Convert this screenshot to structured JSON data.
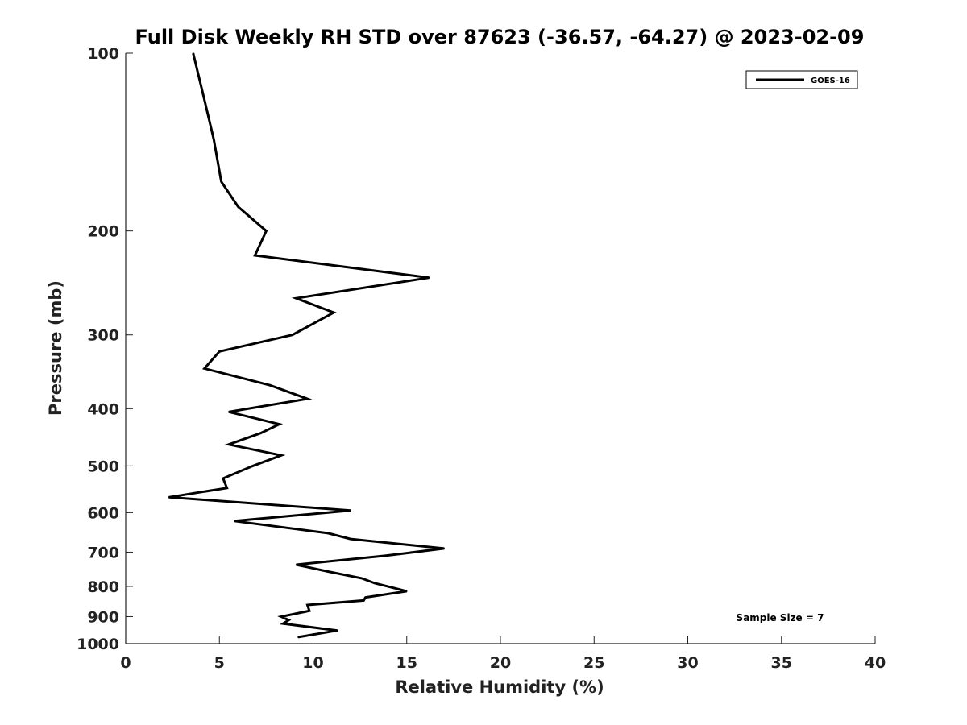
{
  "chart_data": {
    "type": "line",
    "title": "Full Disk Weekly RH STD over 87623 (-36.57, -64.27) @ 2023-02-09",
    "xlabel": "Relative Humidity (%)",
    "ylabel": "Pressure (mb)",
    "xlim": [
      0,
      40
    ],
    "ylim": [
      1000,
      100
    ],
    "yscale": "log",
    "y_inverted": true,
    "grid": false,
    "legend_placement": "top-right",
    "x_ticks": [
      "0",
      "5",
      "10",
      "15",
      "20",
      "25",
      "30",
      "35",
      "40"
    ],
    "y_ticks": [
      "100",
      "200",
      "300",
      "400",
      "500",
      "600",
      "700",
      "800",
      "900",
      "1000"
    ],
    "annotation": "Sample Size = 7",
    "series": [
      {
        "name": "GOES-16",
        "color": "#000000",
        "points": [
          [
            3.6,
            100
          ],
          [
            4.2,
            120
          ],
          [
            4.7,
            140
          ],
          [
            5.1,
            165
          ],
          [
            6.0,
            182
          ],
          [
            7.5,
            200
          ],
          [
            6.9,
            220
          ],
          [
            16.2,
            240
          ],
          [
            9.1,
            260
          ],
          [
            11.1,
            275
          ],
          [
            8.9,
            300
          ],
          [
            5.0,
            320
          ],
          [
            4.2,
            342
          ],
          [
            7.7,
            365
          ],
          [
            9.7,
            385
          ],
          [
            5.5,
            405
          ],
          [
            8.2,
            425
          ],
          [
            7.2,
            440
          ],
          [
            5.5,
            460
          ],
          [
            8.3,
            480
          ],
          [
            6.8,
            500
          ],
          [
            5.2,
            525
          ],
          [
            5.4,
            545
          ],
          [
            2.3,
            565
          ],
          [
            12.0,
            595
          ],
          [
            5.8,
            620
          ],
          [
            10.8,
            650
          ],
          [
            12.0,
            665
          ],
          [
            17.0,
            690
          ],
          [
            13.8,
            710
          ],
          [
            9.1,
            735
          ],
          [
            10.8,
            755
          ],
          [
            12.6,
            775
          ],
          [
            13.3,
            790
          ],
          [
            15.0,
            815
          ],
          [
            12.8,
            835
          ],
          [
            12.7,
            845
          ],
          [
            9.7,
            860
          ],
          [
            9.8,
            880
          ],
          [
            8.3,
            900
          ],
          [
            8.7,
            912
          ],
          [
            8.4,
            925
          ],
          [
            11.3,
            950
          ],
          [
            9.2,
            975
          ]
        ]
      }
    ]
  }
}
